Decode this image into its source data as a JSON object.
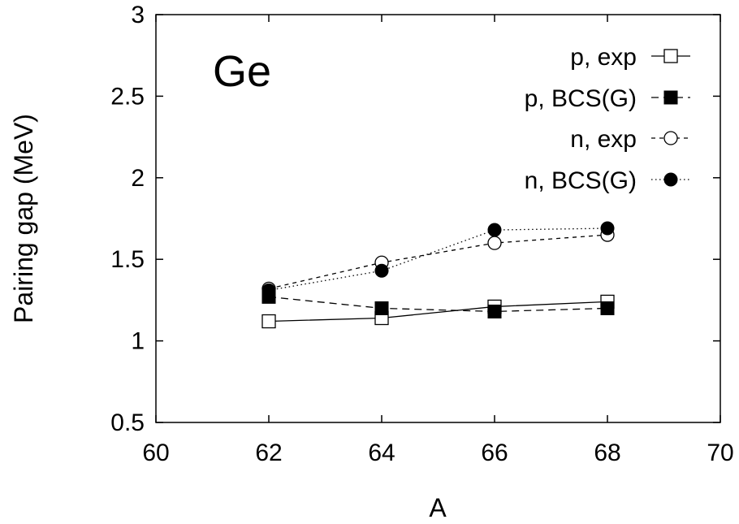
{
  "chart_data": {
    "type": "line",
    "xlabel": "A",
    "ylabel": "Pairing gap (MeV)",
    "annotation": "Ge",
    "xlim": [
      60,
      70
    ],
    "ylim": [
      0.5,
      3
    ],
    "xticks": [
      60,
      62,
      64,
      66,
      68,
      70
    ],
    "yticks": [
      0.5,
      1,
      1.5,
      2,
      2.5,
      3
    ],
    "ytick_labels": [
      "0.5",
      "1",
      "1.5",
      "2",
      "2.5",
      "3"
    ],
    "grid": false,
    "legend_position": "top-right",
    "series": [
      {
        "name": "p, exp",
        "x": [
          62,
          64,
          66,
          68
        ],
        "y": [
          1.12,
          1.14,
          1.21,
          1.24
        ],
        "marker": "open-square",
        "line": "solid",
        "color": "#000000"
      },
      {
        "name": "p, BCS(G)",
        "x": [
          62,
          64,
          66,
          68
        ],
        "y": [
          1.27,
          1.2,
          1.18,
          1.2
        ],
        "marker": "filled-square",
        "line": "dashed",
        "color": "#000000"
      },
      {
        "name": "n, exp",
        "x": [
          62,
          64,
          66,
          68
        ],
        "y": [
          1.32,
          1.48,
          1.6,
          1.65
        ],
        "marker": "open-circle",
        "line": "short-dashed",
        "color": "#000000"
      },
      {
        "name": "n, BCS(G)",
        "x": [
          62,
          64,
          66,
          68
        ],
        "y": [
          1.31,
          1.43,
          1.68,
          1.69
        ],
        "marker": "filled-circle",
        "line": "dotted",
        "color": "#000000"
      }
    ]
  }
}
